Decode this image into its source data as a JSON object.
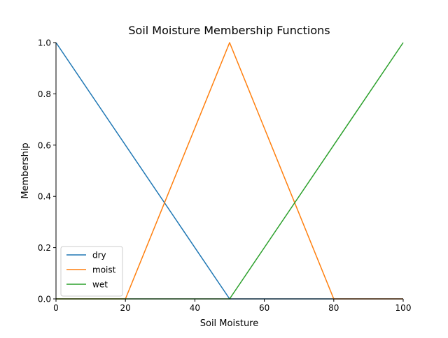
{
  "chart_data": {
    "type": "line",
    "title": "Soil Moisture Membership Functions",
    "xlabel": "Soil Moisture",
    "ylabel": "Membership",
    "xlim": [
      0,
      100
    ],
    "ylim": [
      0,
      1
    ],
    "x_ticks": [
      0,
      20,
      40,
      60,
      80,
      100
    ],
    "y_ticks": [
      0.0,
      0.2,
      0.4,
      0.6,
      0.8,
      1.0
    ],
    "x_tick_labels": [
      "0",
      "20",
      "40",
      "60",
      "80",
      "100"
    ],
    "y_tick_labels": [
      "0.0",
      "0.2",
      "0.4",
      "0.6",
      "0.8",
      "1.0"
    ],
    "grid": false,
    "legend_position": "lower-left",
    "series": [
      {
        "name": "dry",
        "color": "#1f77b4",
        "points": [
          [
            0,
            1.0
          ],
          [
            50,
            0.0
          ],
          [
            100,
            0.0
          ]
        ]
      },
      {
        "name": "moist",
        "color": "#ff7f0e",
        "points": [
          [
            0,
            0.0
          ],
          [
            20,
            0.0
          ],
          [
            50,
            1.0
          ],
          [
            80,
            0.0
          ],
          [
            100,
            0.0
          ]
        ]
      },
      {
        "name": "wet",
        "color": "#2ca02c",
        "points": [
          [
            0,
            0.0
          ],
          [
            50,
            0.0
          ],
          [
            100,
            1.0
          ]
        ]
      }
    ]
  }
}
